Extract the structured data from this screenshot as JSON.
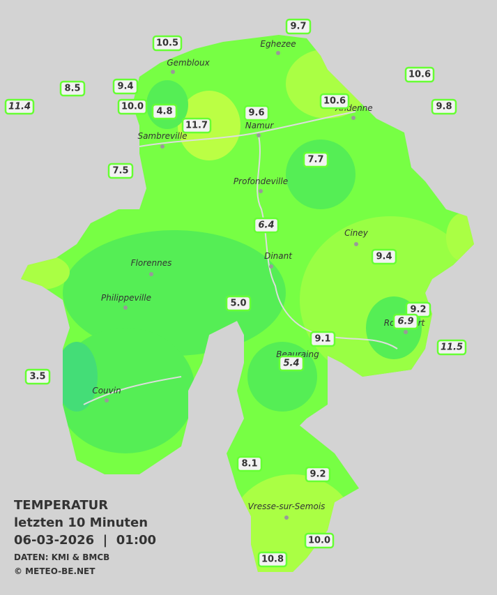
{
  "header": {
    "title": "TEMPERATUR",
    "subtitle": "letzten 10 Minuten",
    "datetime": "06-03-2026  |  01:00",
    "source": "DATEN: KMI & BMCB",
    "copyright": "© METEO-BE.NET"
  },
  "cities": [
    "Eghezee",
    "Gembloux",
    "Andenne",
    "Namur",
    "Sambreville",
    "Profondeville",
    "Ciney",
    "Florennes",
    "Dinant",
    "Philippeville",
    "Rochefort",
    "Beauraing",
    "Couvin",
    "Vresse-sur-Semois"
  ],
  "stations": [
    {
      "label": "10.5"
    },
    {
      "label": "9.7"
    },
    {
      "label": "10.6"
    },
    {
      "label": "8.5"
    },
    {
      "label": "9.4"
    },
    {
      "label": "10.0"
    },
    {
      "label": "4.8"
    },
    {
      "label": "11.7"
    },
    {
      "label": "9.6"
    },
    {
      "label": "10.6"
    },
    {
      "label": "9.8"
    },
    {
      "label": "11.4",
      "italic": true
    },
    {
      "label": "7.5"
    },
    {
      "label": "7.7"
    },
    {
      "label": "6.4",
      "italic": true
    },
    {
      "label": "9.4"
    },
    {
      "label": "5.0"
    },
    {
      "label": "9.2"
    },
    {
      "label": "6.9",
      "italic": true
    },
    {
      "label": "11.5",
      "italic": true
    },
    {
      "label": "9.1"
    },
    {
      "label": "5.4",
      "italic": true
    },
    {
      "label": "3.5"
    },
    {
      "label": "8.1"
    },
    {
      "label": "9.2"
    },
    {
      "label": "10.0"
    },
    {
      "label": "10.8"
    }
  ]
}
